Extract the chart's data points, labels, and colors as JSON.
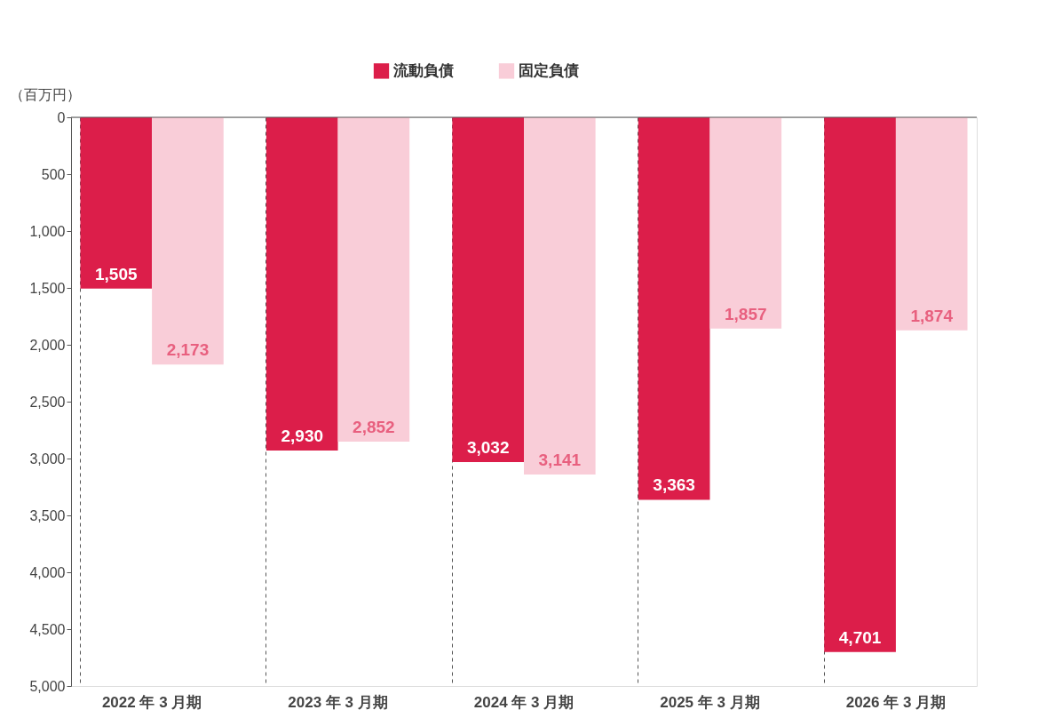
{
  "chart_data": {
    "type": "bar",
    "categories": [
      "2022 年 3 月期",
      "2023 年 3 月期",
      "2024 年 3 月期",
      "2025 年 3 月期",
      "2026 年 3 月期"
    ],
    "series": [
      {
        "name": "流動負債",
        "color": "#dc1e4a",
        "values": [
          1505,
          2930,
          3032,
          3363,
          4701
        ],
        "value_labels": [
          "1,505",
          "2,930",
          "3,032",
          "3,363",
          "4,701"
        ]
      },
      {
        "name": "固定負債",
        "color": "#f9cdd8",
        "values": [
          2173,
          2852,
          3141,
          1857,
          1874
        ],
        "value_labels": [
          "2,173",
          "2,852",
          "3,141",
          "1,857",
          "1,874"
        ]
      }
    ],
    "ylabel": "（百万円）",
    "ylim": [
      5000,
      0
    ],
    "yticks": [
      0,
      500,
      {
        "value": 1000,
        "label": "1,000"
      },
      {
        "value": 1500,
        "label": "1,500"
      },
      {
        "value": 2000,
        "label": "2,000"
      },
      {
        "value": 2500,
        "label": "2,500"
      },
      {
        "value": 3000,
        "label": "3,000"
      },
      {
        "value": 3500,
        "label": "3,500"
      },
      {
        "value": 4000,
        "label": "4,000"
      },
      {
        "value": 4500,
        "label": "4,500"
      },
      {
        "value": 5000,
        "label": "5,000"
      }
    ],
    "grid": "x",
    "legend": "top"
  }
}
